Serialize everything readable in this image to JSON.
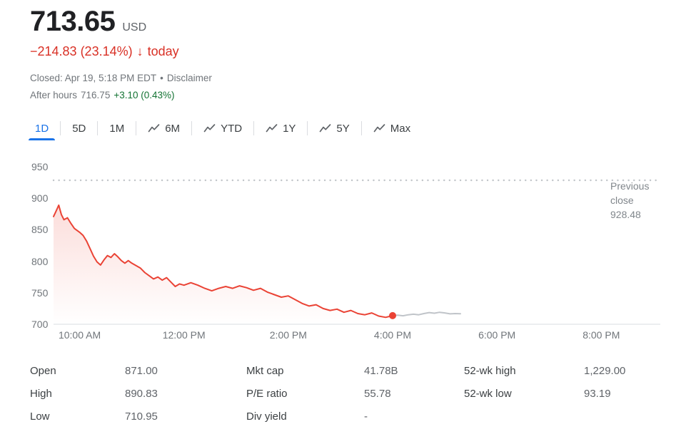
{
  "header": {
    "price": "713.65",
    "currency": "USD",
    "change": "−214.83 (23.14%)",
    "change_arrow": "↓",
    "change_suffix": "today",
    "closed_line": "Closed: Apr 19, 5:18 PM EDT",
    "separator": "•",
    "disclaimer": "Disclaimer",
    "after_hours_label": "After hours",
    "after_hours_price": "716.75",
    "after_hours_change": "+3.10 (0.43%)"
  },
  "tabs": [
    {
      "label": "1D",
      "icon": null,
      "active": true
    },
    {
      "label": "5D",
      "icon": null,
      "active": false
    },
    {
      "label": "1M",
      "icon": null,
      "active": false
    },
    {
      "label": "6M",
      "icon": "trend-line-icon",
      "active": false
    },
    {
      "label": "YTD",
      "icon": "trend-line-icon",
      "active": false
    },
    {
      "label": "1Y",
      "icon": "trend-line-icon",
      "active": false
    },
    {
      "label": "5Y",
      "icon": "trend-line-icon",
      "active": false
    },
    {
      "label": "Max",
      "icon": "trend-line-icon",
      "active": false
    }
  ],
  "chart_data": {
    "type": "line",
    "ylim": [
      700,
      960
    ],
    "y_ticks": [
      "950",
      "900",
      "850",
      "800",
      "750",
      "700"
    ],
    "x_ticks": [
      "10:00 AM",
      "12:00 PM",
      "2:00 PM",
      "4:00 PM",
      "6:00 PM",
      "8:00 PM"
    ],
    "x_tick_minutes": [
      30,
      150,
      270,
      390,
      510,
      630
    ],
    "x_axis_start_time": "9:30 AM",
    "grid": "off",
    "previous_close": {
      "value": 928.48,
      "label_lines": [
        "Previous",
        "close",
        "928.48"
      ]
    },
    "end_dot": {
      "x_minute": 390,
      "value": 713.65
    },
    "series": [
      {
        "name": "regular-session",
        "color": "#ea4335",
        "points": [
          [
            0,
            871
          ],
          [
            3,
            880
          ],
          [
            6,
            889
          ],
          [
            9,
            874
          ],
          [
            12,
            866
          ],
          [
            16,
            869
          ],
          [
            20,
            860
          ],
          [
            24,
            852
          ],
          [
            28,
            848
          ],
          [
            30,
            846
          ],
          [
            34,
            841
          ],
          [
            38,
            832
          ],
          [
            42,
            820
          ],
          [
            46,
            808
          ],
          [
            50,
            799
          ],
          [
            54,
            794
          ],
          [
            58,
            802
          ],
          [
            62,
            809
          ],
          [
            66,
            806
          ],
          [
            70,
            812
          ],
          [
            74,
            807
          ],
          [
            78,
            801
          ],
          [
            82,
            797
          ],
          [
            86,
            801
          ],
          [
            90,
            797
          ],
          [
            95,
            793
          ],
          [
            100,
            789
          ],
          [
            105,
            782
          ],
          [
            110,
            777
          ],
          [
            115,
            772
          ],
          [
            120,
            775
          ],
          [
            125,
            770
          ],
          [
            130,
            774
          ],
          [
            135,
            767
          ],
          [
            140,
            760
          ],
          [
            145,
            764
          ],
          [
            150,
            762
          ],
          [
            158,
            766
          ],
          [
            166,
            762
          ],
          [
            174,
            757
          ],
          [
            182,
            753
          ],
          [
            190,
            757
          ],
          [
            198,
            760
          ],
          [
            206,
            757
          ],
          [
            214,
            761
          ],
          [
            222,
            758
          ],
          [
            230,
            754
          ],
          [
            238,
            757
          ],
          [
            246,
            751
          ],
          [
            254,
            747
          ],
          [
            262,
            743
          ],
          [
            270,
            745
          ],
          [
            278,
            739
          ],
          [
            286,
            733
          ],
          [
            294,
            729
          ],
          [
            302,
            731
          ],
          [
            310,
            725
          ],
          [
            318,
            722
          ],
          [
            326,
            724
          ],
          [
            334,
            719
          ],
          [
            342,
            722
          ],
          [
            350,
            717
          ],
          [
            358,
            715
          ],
          [
            366,
            718
          ],
          [
            374,
            713
          ],
          [
            382,
            711
          ],
          [
            390,
            713.65
          ]
        ]
      },
      {
        "name": "after-hours",
        "color": "#c0c4c9",
        "points": [
          [
            390,
            713.65
          ],
          [
            396,
            714.5
          ],
          [
            402,
            713.5
          ],
          [
            408,
            715
          ],
          [
            414,
            716
          ],
          [
            420,
            715
          ],
          [
            426,
            717
          ],
          [
            432,
            718.5
          ],
          [
            438,
            717.5
          ],
          [
            444,
            719
          ],
          [
            450,
            718
          ],
          [
            456,
            716.5
          ],
          [
            462,
            717
          ],
          [
            468,
            716.75
          ]
        ]
      }
    ]
  },
  "stats": {
    "columns": [
      {
        "rows": [
          {
            "key": "open",
            "label": "Open",
            "value": "871.00"
          },
          {
            "key": "high",
            "label": "High",
            "value": "890.83"
          },
          {
            "key": "low",
            "label": "Low",
            "value": "710.95"
          }
        ]
      },
      {
        "rows": [
          {
            "key": "mkt-cap",
            "label": "Mkt cap",
            "value": "41.78B"
          },
          {
            "key": "pe-ratio",
            "label": "P/E ratio",
            "value": "55.78"
          },
          {
            "key": "div-yield",
            "label": "Div yield",
            "value": "-"
          }
        ]
      },
      {
        "rows": [
          {
            "key": "52wk-high",
            "label": "52-wk high",
            "value": "1,229.00"
          },
          {
            "key": "52wk-low",
            "label": "52-wk low",
            "value": "93.19"
          }
        ]
      }
    ]
  },
  "colors": {
    "down_red": "#d93025",
    "line_red": "#ea4335",
    "up_green": "#137333",
    "accent_blue": "#1a73e8",
    "muted_gray": "#70757a",
    "after_hours_line": "#c0c4c9"
  }
}
